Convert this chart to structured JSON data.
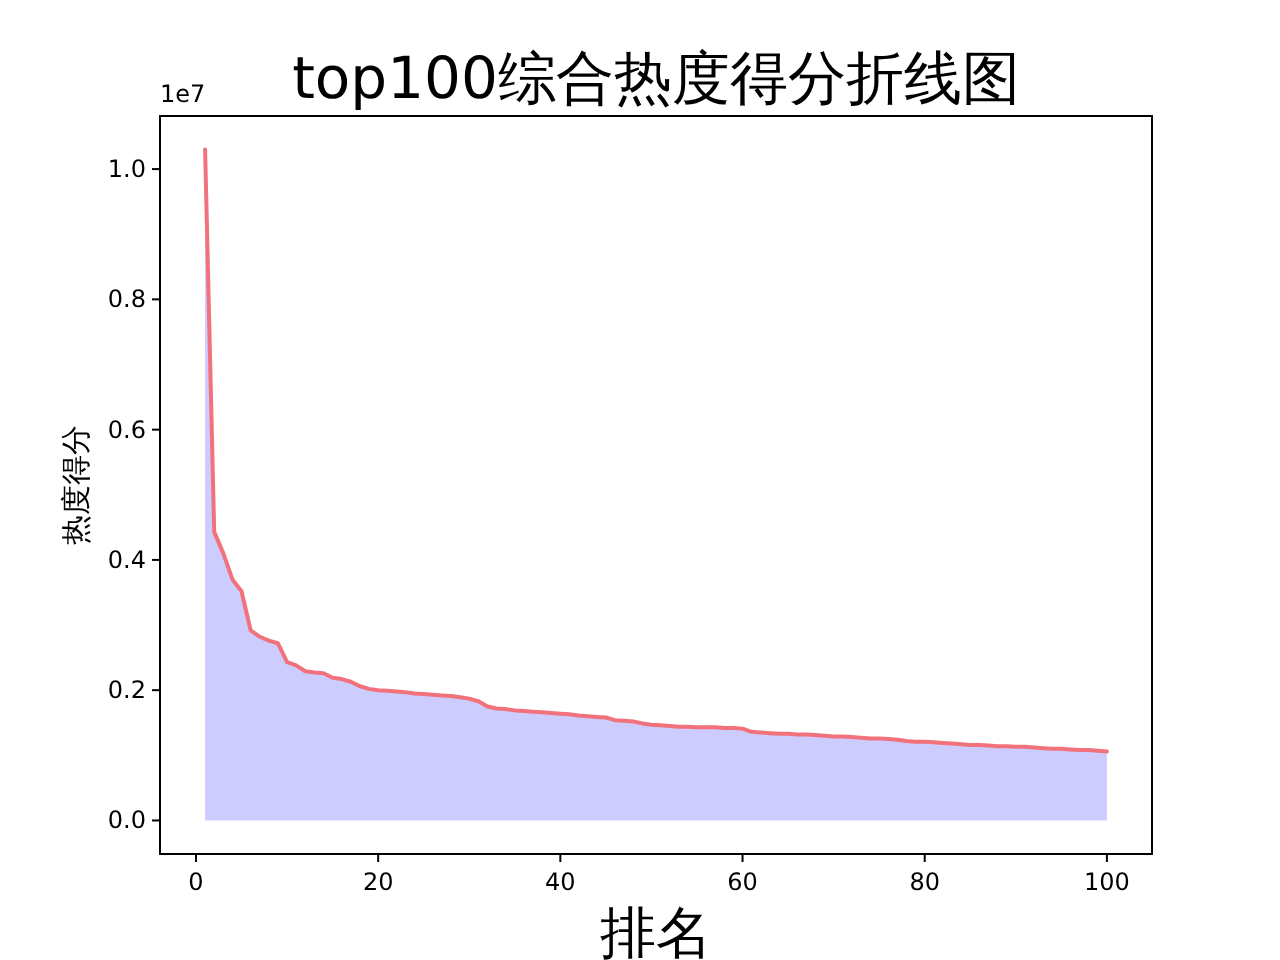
{
  "chart_data": {
    "type": "area",
    "title": "top100综合热度得分折线图",
    "xlabel": "排名",
    "ylabel": "热度得分",
    "annotations": [
      "1e7"
    ],
    "x": [
      1,
      2,
      3,
      4,
      5,
      6,
      7,
      8,
      9,
      10,
      11,
      12,
      13,
      14,
      15,
      16,
      17,
      18,
      19,
      20,
      21,
      22,
      23,
      24,
      25,
      26,
      27,
      28,
      29,
      30,
      31,
      32,
      33,
      34,
      35,
      36,
      37,
      38,
      39,
      40,
      41,
      42,
      43,
      44,
      45,
      46,
      47,
      48,
      49,
      50,
      51,
      52,
      53,
      54,
      55,
      56,
      57,
      58,
      59,
      60,
      61,
      62,
      63,
      64,
      65,
      66,
      67,
      68,
      69,
      70,
      71,
      72,
      73,
      74,
      75,
      76,
      77,
      78,
      79,
      80,
      81,
      82,
      83,
      84,
      85,
      86,
      87,
      88,
      89,
      90,
      91,
      92,
      93,
      94,
      95,
      96,
      97,
      98,
      99,
      100
    ],
    "series": [
      {
        "color": "#ccccff",
        "values": [
          1.03,
          0.443,
          0.41,
          0.37,
          0.352,
          0.292,
          0.282,
          0.276,
          0.272,
          0.243,
          0.238,
          0.229,
          0.227,
          0.226,
          0.219,
          0.217,
          0.213,
          0.206,
          0.202,
          0.2,
          0.199,
          0.198,
          0.197,
          0.195,
          0.194,
          0.193,
          0.192,
          0.191,
          0.189,
          0.187,
          0.183,
          0.175,
          0.172,
          0.171,
          0.169,
          0.168,
          0.167,
          0.166,
          0.165,
          0.164,
          0.163,
          0.161,
          0.16,
          0.159,
          0.158,
          0.154,
          0.153,
          0.152,
          0.149,
          0.147,
          0.146,
          0.145,
          0.144,
          0.144,
          0.143,
          0.143,
          0.143,
          0.142,
          0.142,
          0.141,
          0.136,
          0.135,
          0.134,
          0.133,
          0.133,
          0.132,
          0.132,
          0.131,
          0.13,
          0.129,
          0.129,
          0.128,
          0.127,
          0.126,
          0.126,
          0.125,
          0.124,
          0.122,
          0.121,
          0.121,
          0.12,
          0.119,
          0.118,
          0.117,
          0.116,
          0.116,
          0.115,
          0.114,
          0.114,
          0.113,
          0.113,
          0.112,
          0.111,
          0.11,
          0.11,
          0.109,
          0.108,
          0.108,
          0.107,
          0.106
        ]
      },
      {
        "type": "line",
        "color": "#f2727c",
        "values": [
          1.03,
          0.443,
          0.41,
          0.37,
          0.352,
          0.292,
          0.282,
          0.276,
          0.272,
          0.243,
          0.238,
          0.229,
          0.227,
          0.226,
          0.219,
          0.217,
          0.213,
          0.206,
          0.202,
          0.2,
          0.199,
          0.198,
          0.197,
          0.195,
          0.194,
          0.193,
          0.192,
          0.191,
          0.189,
          0.187,
          0.183,
          0.175,
          0.172,
          0.171,
          0.169,
          0.168,
          0.167,
          0.166,
          0.165,
          0.164,
          0.163,
          0.161,
          0.16,
          0.159,
          0.158,
          0.154,
          0.153,
          0.152,
          0.149,
          0.147,
          0.146,
          0.145,
          0.144,
          0.144,
          0.143,
          0.143,
          0.143,
          0.142,
          0.142,
          0.141,
          0.136,
          0.135,
          0.134,
          0.133,
          0.133,
          0.132,
          0.132,
          0.131,
          0.13,
          0.129,
          0.129,
          0.128,
          0.127,
          0.126,
          0.126,
          0.125,
          0.124,
          0.122,
          0.121,
          0.121,
          0.12,
          0.119,
          0.118,
          0.117,
          0.116,
          0.116,
          0.115,
          0.114,
          0.114,
          0.113,
          0.113,
          0.112,
          0.111,
          0.11,
          0.11,
          0.109,
          0.108,
          0.108,
          0.107,
          0.106
        ]
      }
    ],
    "xlim": [
      -3.95,
      104.95
    ],
    "ylim": [
      -0.0515,
      1.0815
    ],
    "xticks": [
      0,
      20,
      40,
      60,
      80,
      100
    ],
    "yticks": [
      {
        "value": 0,
        "label": "0.0"
      },
      {
        "value": 0.2,
        "label": "0.2"
      },
      {
        "value": 0.4,
        "label": "0.4"
      },
      {
        "value": 0.6,
        "label": "0.6"
      },
      {
        "value": 0.8,
        "label": "0.8"
      },
      {
        "value": 1,
        "label": "1.0"
      }
    ]
  }
}
